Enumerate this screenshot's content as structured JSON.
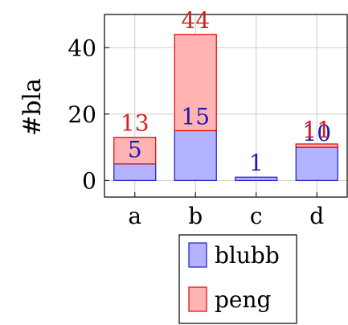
{
  "chart_data": {
    "type": "bar",
    "stacked": true,
    "categories": [
      "a",
      "b",
      "c",
      "d"
    ],
    "series": [
      {
        "name": "blubb",
        "values": [
          5,
          15,
          1,
          10
        ],
        "fill": "#b3b3ff",
        "stroke": "#1a1acc",
        "label_color": "#1a1ab3"
      },
      {
        "name": "peng",
        "values": [
          8,
          29,
          0,
          1
        ],
        "fill": "#ffb3b3",
        "stroke": "#e60000",
        "label_color": "#d42020"
      }
    ],
    "stack_totals": [
      "13",
      "44",
      "",
      "11"
    ],
    "bar_labels": [
      "5",
      "15",
      "1",
      "10"
    ],
    "ylabel": "#bla",
    "ylim": [
      -5,
      50
    ],
    "yticks": [
      0,
      20,
      40
    ],
    "grid": true,
    "legend": "below"
  }
}
